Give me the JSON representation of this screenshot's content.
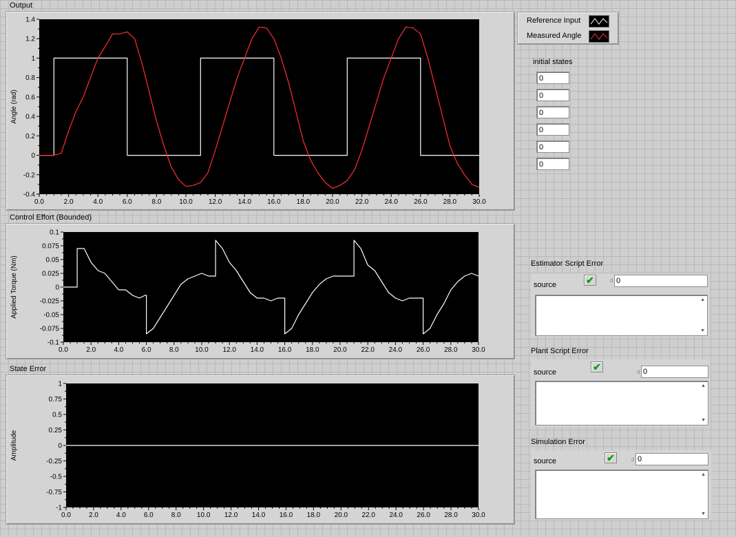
{
  "output_chart": {
    "label": "Output",
    "ylabel": "Angle (rad)",
    "y_ticks": [
      "1.4",
      "1.2",
      "1",
      "0.8",
      "0.6",
      "0.4",
      "0.2",
      "0",
      "-0.2",
      "-0.4"
    ],
    "x_ticks": [
      "0.0",
      "2.0",
      "4.0",
      "6.0",
      "8.0",
      "10.0",
      "12.0",
      "14.0",
      "16.0",
      "18.0",
      "20.0",
      "22.0",
      "24.0",
      "26.0",
      "28.0",
      "30.0"
    ]
  },
  "control_chart": {
    "label": "Control Effort (Bounded)",
    "ylabel": "Applied Torque (Nm)",
    "y_ticks": [
      "0.1",
      "0.075",
      "0.05",
      "0.025",
      "0",
      "-0.025",
      "-0.05",
      "-0.075",
      "-0.1"
    ],
    "x_ticks": [
      "0.0",
      "2.0",
      "4.0",
      "6.0",
      "8.0",
      "10.0",
      "12.0",
      "14.0",
      "16.0",
      "18.0",
      "20.0",
      "22.0",
      "24.0",
      "26.0",
      "28.0",
      "30.0"
    ]
  },
  "state_chart": {
    "label": "State Error",
    "ylabel": "Amplitude",
    "y_ticks": [
      "1",
      "0.75",
      "0.5",
      "0.25",
      "0",
      "-0.25",
      "-0.5",
      "-0.75",
      "-1"
    ],
    "x_ticks": [
      "0.0",
      "2.0",
      "4.0",
      "6.0",
      "8.0",
      "10.0",
      "12.0",
      "14.0",
      "16.0",
      "18.0",
      "20.0",
      "22.0",
      "24.0",
      "26.0",
      "28.0",
      "30.0"
    ]
  },
  "legend": {
    "reference": "Reference Input",
    "measured": "Measured Angle",
    "reference_color": "#ffffff",
    "measured_color": "#ff3030"
  },
  "initial_states": {
    "label": "initial states",
    "values": [
      "0",
      "0",
      "0",
      "0",
      "0",
      "0"
    ]
  },
  "errors": {
    "estimator": {
      "title": "Estimator Script Error",
      "source_label": "source",
      "code": "0",
      "status": "ok"
    },
    "plant": {
      "title": "Plant Script Error",
      "source_label": "source",
      "code": "0",
      "status": "ok"
    },
    "simulation": {
      "title": "Simulation Error",
      "source_label": "source",
      "code": "0",
      "status": "ok"
    }
  },
  "chart_data": [
    {
      "type": "line",
      "title": "Output",
      "xlabel": "",
      "ylabel": "Angle (rad)",
      "xlim": [
        0,
        30
      ],
      "ylim": [
        -0.4,
        1.4
      ],
      "series": [
        {
          "name": "Reference Input",
          "color": "#ffffff",
          "x": [
            0,
            1,
            1,
            6,
            6,
            11,
            11,
            16,
            16,
            21,
            21,
            26,
            26,
            30
          ],
          "y": [
            0,
            0,
            1,
            1,
            0,
            0,
            1,
            1,
            0,
            0,
            1,
            1,
            0,
            0
          ]
        },
        {
          "name": "Measured Angle",
          "color": "#ff3030",
          "x": [
            0,
            1.0,
            1.5,
            2.0,
            2.5,
            3.0,
            3.5,
            4.0,
            4.5,
            5.0,
            5.5,
            6.0,
            6.5,
            7.0,
            7.5,
            8.0,
            8.5,
            9.0,
            9.5,
            10.0,
            10.5,
            11.0,
            11.5,
            12.0,
            12.5,
            13.0,
            13.5,
            14.0,
            14.5,
            15.0,
            15.5,
            16.0,
            16.5,
            17.0,
            17.5,
            18.0,
            18.5,
            19.0,
            19.5,
            20.0,
            20.5,
            21.0,
            21.5,
            22.0,
            22.5,
            23.0,
            23.5,
            24.0,
            24.5,
            25.0,
            25.5,
            26.0,
            26.5,
            27.0,
            27.5,
            28.0,
            28.5,
            29.0,
            29.5,
            30.0
          ],
          "y": [
            0,
            0,
            0.02,
            0.25,
            0.45,
            0.6,
            0.8,
            1.0,
            1.12,
            1.25,
            1.25,
            1.27,
            1.2,
            0.95,
            0.65,
            0.35,
            0.1,
            -0.12,
            -0.25,
            -0.32,
            -0.31,
            -0.28,
            -0.18,
            0.05,
            0.3,
            0.55,
            0.8,
            1.0,
            1.2,
            1.32,
            1.31,
            1.2,
            1.0,
            0.75,
            0.45,
            0.15,
            -0.05,
            -0.18,
            -0.28,
            -0.34,
            -0.31,
            -0.26,
            -0.15,
            0.05,
            0.3,
            0.55,
            0.8,
            1.0,
            1.2,
            1.32,
            1.31,
            1.25,
            1.0,
            0.7,
            0.4,
            0.1,
            -0.08,
            -0.2,
            -0.3,
            -0.33
          ]
        }
      ]
    },
    {
      "type": "line",
      "title": "Control Effort (Bounded)",
      "xlabel": "",
      "ylabel": "Applied Torque (Nm)",
      "xlim": [
        0,
        30
      ],
      "ylim": [
        -0.1,
        0.1
      ],
      "series": [
        {
          "name": "",
          "color": "#ffffff",
          "x": [
            0,
            1.0,
            1.0,
            1.5,
            2.0,
            2.5,
            3.0,
            3.5,
            4.0,
            4.5,
            5.0,
            5.5,
            5.9,
            6.0,
            6.0,
            6.5,
            7.0,
            7.5,
            8.0,
            8.5,
            9.0,
            9.5,
            10.0,
            10.5,
            11.0,
            11.0,
            11.5,
            12.0,
            12.5,
            13.0,
            13.5,
            14.0,
            14.5,
            15.0,
            15.5,
            15.9,
            16.0,
            16.0,
            16.5,
            17.0,
            17.5,
            18.0,
            18.5,
            19.0,
            19.5,
            20.0,
            20.5,
            21.0,
            21.0,
            21.5,
            22.0,
            22.5,
            23.0,
            23.5,
            24.0,
            24.5,
            25.0,
            25.5,
            25.9,
            26.0,
            26.0,
            26.5,
            27.0,
            27.5,
            28.0,
            28.5,
            29.0,
            29.5,
            30.0
          ],
          "y": [
            0,
            0,
            0.07,
            0.07,
            0.045,
            0.03,
            0.025,
            0.01,
            -0.005,
            -0.005,
            -0.015,
            -0.02,
            -0.015,
            -0.015,
            -0.085,
            -0.075,
            -0.055,
            -0.035,
            -0.015,
            0.005,
            0.015,
            0.02,
            0.025,
            0.02,
            0.02,
            0.085,
            0.07,
            0.045,
            0.03,
            0.01,
            -0.01,
            -0.02,
            -0.02,
            -0.025,
            -0.02,
            -0.02,
            -0.02,
            -0.085,
            -0.075,
            -0.05,
            -0.03,
            -0.01,
            0.005,
            0.015,
            0.02,
            0.02,
            0.02,
            0.02,
            0.085,
            0.07,
            0.04,
            0.03,
            0.01,
            -0.01,
            -0.02,
            -0.025,
            -0.02,
            -0.02,
            -0.02,
            -0.02,
            -0.085,
            -0.075,
            -0.05,
            -0.03,
            -0.005,
            0.01,
            0.02,
            0.025,
            0.02
          ]
        }
      ]
    },
    {
      "type": "line",
      "title": "State Error",
      "xlabel": "",
      "ylabel": "Amplitude",
      "xlim": [
        0,
        30
      ],
      "ylim": [
        -1,
        1
      ],
      "series": [
        {
          "name": "",
          "color": "#ffffff",
          "x": [
            0,
            30
          ],
          "y": [
            0,
            0
          ]
        }
      ]
    }
  ]
}
